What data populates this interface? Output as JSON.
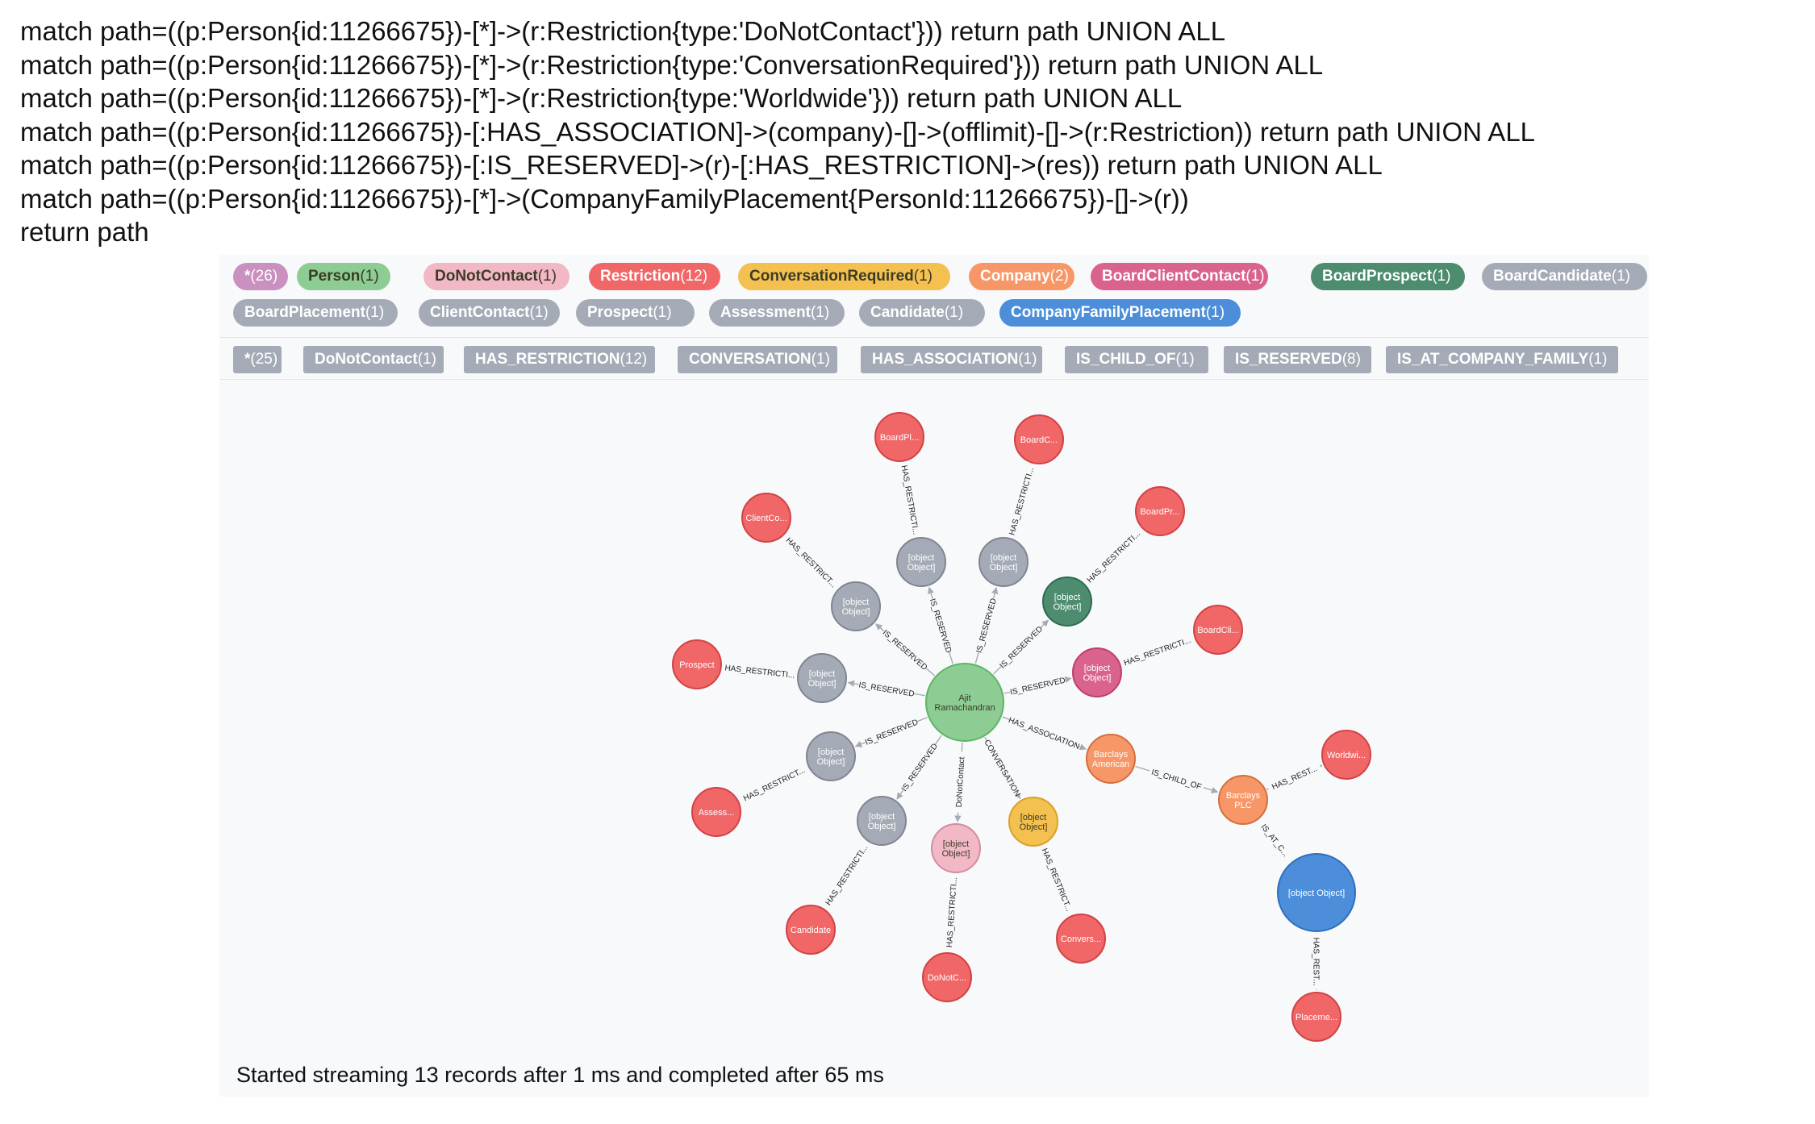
{
  "query": {
    "lines": [
      "match path=((p:Person{id:11266675})-[*]->(r:Restriction{type:'DoNotContact'})) return path UNION ALL",
      "match path=((p:Person{id:11266675})-[*]->(r:Restriction{type:'ConversationRequired'})) return path UNION ALL",
      "match path=((p:Person{id:11266675})-[*]->(r:Restriction{type:'Worldwide'})) return path UNION ALL",
      "match path=((p:Person{id:11266675})-[:HAS_ASSOCIATION]->(company)-[]->(offlimit)-[]->(r:Restriction)) return path UNION ALL",
      "match path=((p:Person{id:11266675})-[:IS_RESERVED]->(r)-[:HAS_RESTRICTION]->(res)) return path UNION ALL",
      "match path=((p:Person{id:11266675})-[*]->(CompanyFamilyPlacement{PersonId:11266675})-[]->(r))",
      "return path"
    ]
  },
  "colors": {
    "star": "#c990c0",
    "person": "#8dcc93",
    "donotcontact": "#f2b8c6",
    "restriction": "#f16667",
    "conversation": "#f4c04f",
    "company": "#f79767",
    "boardclient": "#d9628f",
    "boardprospect": "#4d8c6f",
    "gray": "#a5abb6",
    "cfp": "#4c8eda",
    "relpill": "#a5abb6"
  },
  "node_labels": [
    {
      "label": "*",
      "count": "(26)",
      "color_key": "star",
      "text": "light"
    },
    {
      "label": "Person",
      "count": "(1)",
      "color_key": "person",
      "text": "dark"
    },
    {
      "label": "DoNotContact",
      "count": "(1)",
      "color_key": "donotcontact",
      "text": "dark"
    },
    {
      "label": "Restriction",
      "count": "(12)",
      "color_key": "restriction",
      "text": "light"
    },
    {
      "label": "ConversationRequired",
      "count": "(1)",
      "color_key": "conversation",
      "text": "dark"
    },
    {
      "label": "Company",
      "count": "(2)",
      "color_key": "company",
      "text": "light"
    },
    {
      "label": "BoardClientContact",
      "count": "(1)",
      "color_key": "boardclient",
      "text": "light"
    },
    {
      "label": "BoardProspect",
      "count": "(1)",
      "color_key": "boardprospect",
      "text": "light"
    },
    {
      "label": "BoardCandidate",
      "count": "(1)",
      "color_key": "gray",
      "text": "light"
    },
    {
      "label": "BoardPlacement",
      "count": "(1)",
      "color_key": "gray",
      "text": "light"
    },
    {
      "label": "ClientContact",
      "count": "(1)",
      "color_key": "gray",
      "text": "light"
    },
    {
      "label": "Prospect",
      "count": "(1)",
      "color_key": "gray",
      "text": "light"
    },
    {
      "label": "Assessment",
      "count": "(1)",
      "color_key": "gray",
      "text": "light"
    },
    {
      "label": "Candidate",
      "count": "(1)",
      "color_key": "gray",
      "text": "light"
    },
    {
      "label": "CompanyFamilyPlacement",
      "count": "(1)",
      "color_key": "cfp",
      "text": "light"
    }
  ],
  "rel_types": [
    {
      "label": "*",
      "count": "(25)"
    },
    {
      "label": "DoNotContact",
      "count": "(1)"
    },
    {
      "label": "HAS_RESTRICTION",
      "count": "(12)"
    },
    {
      "label": "CONVERSATION",
      "count": "(1)"
    },
    {
      "label": "HAS_ASSOCIATION",
      "count": "(1)"
    },
    {
      "label": "IS_CHILD_OF",
      "count": "(1)"
    },
    {
      "label": "IS_RESERVED",
      "count": "(8)"
    },
    {
      "label": "IS_AT_COMPANY_FAMILY",
      "count": "(1)"
    }
  ],
  "graph": {
    "nodes": [
      {
        "id": "person",
        "lines": [
          "Ajit",
          "Ramachandran"
        ],
        "color_key": "person",
        "text": "dark"
      },
      {
        "id": "r1",
        "lines": [
          "[object",
          "Object]"
        ],
        "color_key": "gray",
        "text": "light"
      },
      {
        "id": "r2",
        "lines": [
          "[object",
          "Object]"
        ],
        "color_key": "gray",
        "text": "light"
      },
      {
        "id": "r3",
        "lines": [
          "[object",
          "Object]"
        ],
        "color_key": "gray",
        "text": "light"
      },
      {
        "id": "r4",
        "lines": [
          "[object",
          "Object]"
        ],
        "color_key": "boardprospect",
        "text": "light"
      },
      {
        "id": "r5",
        "lines": [
          "[object",
          "Object]"
        ],
        "color_key": "gray",
        "text": "light"
      },
      {
        "id": "r6",
        "lines": [
          "[object",
          "Object]"
        ],
        "color_key": "boardclient",
        "text": "light"
      },
      {
        "id": "r7",
        "lines": [
          "[object",
          "Object]"
        ],
        "color_key": "gray",
        "text": "light"
      },
      {
        "id": "r8",
        "lines": [
          "[object",
          "Object]"
        ],
        "color_key": "gray",
        "text": "light"
      },
      {
        "id": "dnc",
        "lines": [
          "[object",
          "Object]"
        ],
        "color_key": "donotcontact",
        "text": "dark"
      },
      {
        "id": "conv",
        "lines": [
          "[object",
          "Object]"
        ],
        "color_key": "conversation",
        "text": "dark"
      },
      {
        "id": "bamer",
        "lines": [
          "Barclays",
          "American"
        ],
        "color_key": "company",
        "text": "light"
      },
      {
        "id": "bplc",
        "lines": [
          "Barclays",
          "PLC"
        ],
        "color_key": "company",
        "text": "light"
      },
      {
        "id": "cfp",
        "lines": [
          "[object Object]"
        ],
        "color_key": "cfp",
        "text": "light"
      },
      {
        "id": "x_bp",
        "lines": [
          "BoardPl..."
        ],
        "color_key": "restriction",
        "text": "light"
      },
      {
        "id": "x_bc",
        "lines": [
          "BoardC..."
        ],
        "color_key": "restriction",
        "text": "light"
      },
      {
        "id": "x_cc",
        "lines": [
          "ClientCo..."
        ],
        "color_key": "restriction",
        "text": "light"
      },
      {
        "id": "x_bpr",
        "lines": [
          "BoardPr..."
        ],
        "color_key": "restriction",
        "text": "light"
      },
      {
        "id": "x_bcl",
        "lines": [
          "BoardCli..."
        ],
        "color_key": "restriction",
        "text": "light"
      },
      {
        "id": "x_pro",
        "lines": [
          "Prospect"
        ],
        "color_key": "restriction",
        "text": "light"
      },
      {
        "id": "x_ass",
        "lines": [
          "Assess..."
        ],
        "color_key": "restriction",
        "text": "light"
      },
      {
        "id": "x_can",
        "lines": [
          "Candidate"
        ],
        "color_key": "restriction",
        "text": "light"
      },
      {
        "id": "x_dnc",
        "lines": [
          "DoNotC..."
        ],
        "color_key": "restriction",
        "text": "light"
      },
      {
        "id": "x_conv",
        "lines": [
          "Convers..."
        ],
        "color_key": "restriction",
        "text": "light"
      },
      {
        "id": "x_ww",
        "lines": [
          "Worldwi..."
        ],
        "color_key": "restriction",
        "text": "light"
      },
      {
        "id": "x_pl",
        "lines": [
          "Placeme..."
        ],
        "color_key": "restriction",
        "text": "light"
      }
    ],
    "edges": [
      {
        "from": "person",
        "to": "r1",
        "label": "IS_RESERVED"
      },
      {
        "from": "person",
        "to": "r2",
        "label": "IS_RESERVED"
      },
      {
        "from": "person",
        "to": "r3",
        "label": "IS_RESERVED"
      },
      {
        "from": "person",
        "to": "r4",
        "label": "IS_RESERVED"
      },
      {
        "from": "person",
        "to": "r5",
        "label": "IS_RESERVED"
      },
      {
        "from": "person",
        "to": "r6",
        "label": "IS_RESERVED"
      },
      {
        "from": "person",
        "to": "r7",
        "label": "IS_RESERVED"
      },
      {
        "from": "person",
        "to": "r8",
        "label": "IS_RESERVED"
      },
      {
        "from": "person",
        "to": "dnc",
        "label": "DoNotContact"
      },
      {
        "from": "person",
        "to": "conv",
        "label": "CONVERSATION"
      },
      {
        "from": "person",
        "to": "bamer",
        "label": "HAS_ASSOCIATION"
      },
      {
        "from": "bamer",
        "to": "bplc",
        "label": "IS_CHILD_OF"
      },
      {
        "from": "bplc",
        "to": "cfp",
        "label": "IS_AT_C..."
      },
      {
        "from": "bplc",
        "to": "x_ww",
        "label": "HAS_REST..."
      },
      {
        "from": "cfp",
        "to": "x_pl",
        "label": "HAS_REST..."
      },
      {
        "from": "r1",
        "to": "x_bp",
        "label": "HAS_RESTRICTI..."
      },
      {
        "from": "r2",
        "to": "x_bc",
        "label": "HAS_RESTRICTI..."
      },
      {
        "from": "r3",
        "to": "x_cc",
        "label": "HAS_RESTRICT..."
      },
      {
        "from": "r4",
        "to": "x_bpr",
        "label": "HAS_RESTRICTI..."
      },
      {
        "from": "r5",
        "to": "x_pro",
        "label": "HAS_RESTRICTI..."
      },
      {
        "from": "r6",
        "to": "x_bcl",
        "label": "HAS_RESTRICTI..."
      },
      {
        "from": "r7",
        "to": "x_ass",
        "label": "HAS_RESTRICT..."
      },
      {
        "from": "r8",
        "to": "x_can",
        "label": "HAS_RESTRICTI..."
      },
      {
        "from": "dnc",
        "to": "x_dnc",
        "label": "HAS_RESTRICTI..."
      },
      {
        "from": "conv",
        "to": "x_conv",
        "label": "HAS_RESTRICT..."
      }
    ]
  },
  "status": "Started streaming 13 records after 1 ms and completed after 65 ms"
}
